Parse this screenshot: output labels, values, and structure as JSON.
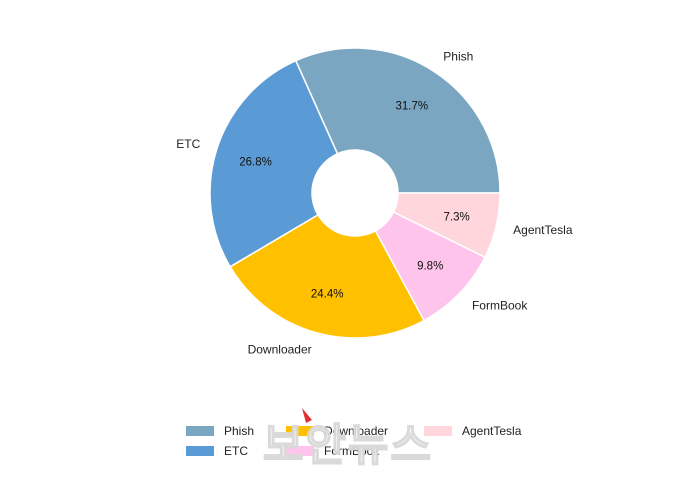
{
  "chart_data": {
    "type": "pie",
    "donut": true,
    "title": "",
    "categories": [
      "Phish",
      "ETC",
      "Downloader",
      "FormBook",
      "AgentTesla"
    ],
    "values": [
      31.7,
      26.8,
      24.4,
      9.8,
      7.3
    ],
    "value_labels": [
      "31.7%",
      "26.8%",
      "24.4%",
      "9.8%",
      "7.3%"
    ],
    "colors": [
      "#7aa6c2",
      "#5b9bd5",
      "#ffc000",
      "#ffc4ec",
      "#ffd6dc"
    ],
    "legend": {
      "placement": "bottom",
      "entries": [
        "Phish",
        "ETC",
        "Downloader",
        "FormBook",
        "AgentTesla"
      ]
    }
  },
  "watermark": {
    "text": "보안뉴스"
  }
}
